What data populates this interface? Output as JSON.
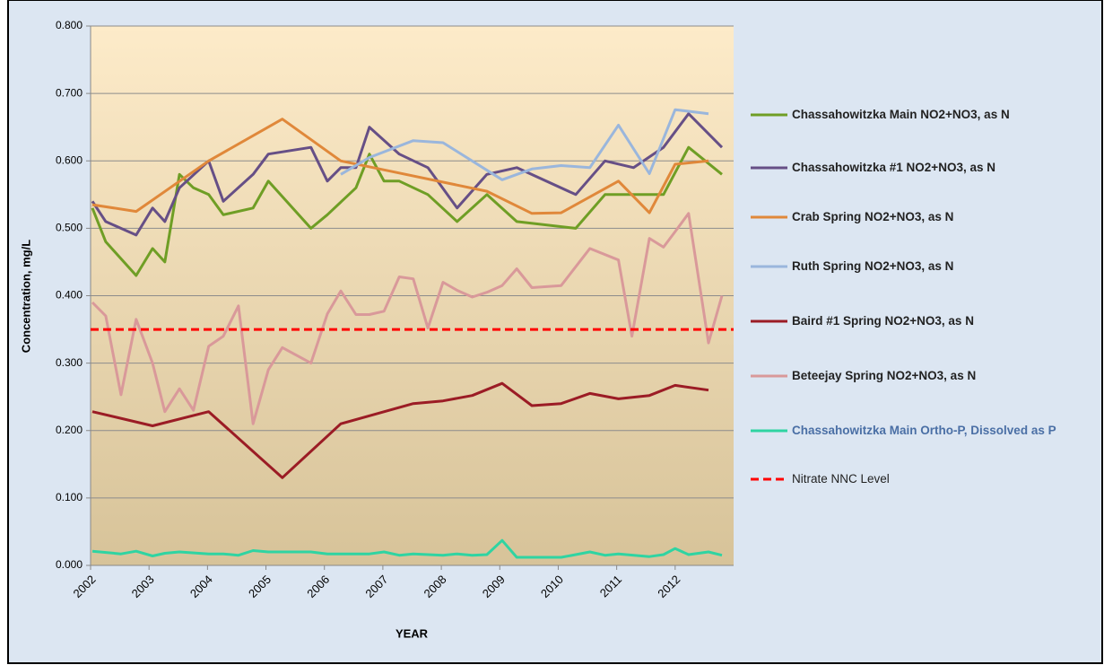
{
  "chart_data": {
    "type": "line",
    "y_label": "Concentration, mg/L",
    "x_label": "YEAR",
    "xlim": [
      2002,
      2013
    ],
    "xticks": [
      2002,
      2003,
      2004,
      2005,
      2006,
      2007,
      2008,
      2009,
      2010,
      2011,
      2012
    ],
    "ylim": [
      0,
      0.8
    ],
    "yticks": [
      {
        "value": 0,
        "label": "0.000"
      },
      {
        "value": 0.1,
        "label": "0.100"
      },
      {
        "value": 0.2,
        "label": "0.200"
      },
      {
        "value": 0.3,
        "label": "0.300"
      },
      {
        "value": 0.4,
        "label": "0.400"
      },
      {
        "value": 0.5,
        "label": "0.500"
      },
      {
        "value": 0.6,
        "label": "0.600"
      },
      {
        "value": 0.7,
        "label": "0.700"
      },
      {
        "value": 0.8,
        "label": "0.800"
      }
    ],
    "grid": true,
    "legend": "right",
    "series": [
      {
        "name": "Chassahowitzka Main NO2+NO3, as N",
        "color": "#6f9e25",
        "x": [
          2002.03,
          2002.26,
          2002.78,
          2003.06,
          2003.27,
          2003.52,
          2003.76,
          2004.02,
          2004.27,
          2004.78,
          2005.04,
          2005.77,
          2006.05,
          2006.54,
          2006.77,
          2007.02,
          2007.28,
          2007.77,
          2008.27,
          2008.78,
          2009.29,
          2010.3,
          2010.8,
          2011.8,
          2012.23,
          2012.8
        ],
        "values": [
          0.53,
          0.48,
          0.43,
          0.47,
          0.45,
          0.58,
          0.56,
          0.55,
          0.52,
          0.53,
          0.57,
          0.5,
          0.52,
          0.56,
          0.61,
          0.57,
          0.57,
          0.55,
          0.51,
          0.55,
          0.51,
          0.5,
          0.55,
          0.55,
          0.62,
          0.58
        ]
      },
      {
        "name": "Chassahowitzka #1 NO2+NO3, as N",
        "color": "#664f86",
        "x": [
          2002.03,
          2002.26,
          2002.78,
          2003.06,
          2003.27,
          2003.52,
          2004.02,
          2004.27,
          2004.78,
          2005.04,
          2005.77,
          2006.05,
          2006.28,
          2006.54,
          2006.77,
          2007.28,
          2007.77,
          2008.27,
          2008.78,
          2009.29,
          2010.3,
          2010.8,
          2011.29,
          2011.8,
          2012.23,
          2012.8
        ],
        "values": [
          0.54,
          0.51,
          0.49,
          0.53,
          0.51,
          0.56,
          0.6,
          0.54,
          0.58,
          0.61,
          0.62,
          0.57,
          0.59,
          0.59,
          0.65,
          0.61,
          0.59,
          0.53,
          0.58,
          0.59,
          0.55,
          0.6,
          0.59,
          0.62,
          0.67,
          0.62
        ]
      },
      {
        "name": "Crab Spring NO2+NO3, as N",
        "color": "#e0883a",
        "x": [
          2002.03,
          2002.78,
          2004.02,
          2005.28,
          2006.28,
          2007.28,
          2008.78,
          2009.55,
          2010.05,
          2011.03,
          2011.56,
          2012.0,
          2012.57
        ],
        "values": [
          0.535,
          0.525,
          0.6,
          0.662,
          0.6,
          0.582,
          0.555,
          0.522,
          0.523,
          0.57,
          0.523,
          0.595,
          0.6
        ]
      },
      {
        "name": "Ruth Spring NO2+NO3, as N",
        "color": "#9ab6dc",
        "x": [
          2006.28,
          2006.77,
          2007.52,
          2008.03,
          2009.04,
          2009.55,
          2010.05,
          2010.54,
          2011.03,
          2011.56,
          2012.0,
          2012.57
        ],
        "values": [
          0.58,
          0.605,
          0.63,
          0.627,
          0.572,
          0.588,
          0.593,
          0.59,
          0.653,
          0.581,
          0.676,
          0.67
        ]
      },
      {
        "name": "Baird #1 Spring NO2+NO3, as N",
        "color": "#9b1c25",
        "x": [
          2002.03,
          2003.06,
          2004.02,
          2005.28,
          2006.28,
          2007.52,
          2008.03,
          2008.53,
          2009.04,
          2009.55,
          2010.05,
          2010.54,
          2011.03,
          2011.56,
          2012.0,
          2012.57
        ],
        "values": [
          0.228,
          0.207,
          0.228,
          0.13,
          0.21,
          0.24,
          0.244,
          0.252,
          0.27,
          0.237,
          0.24,
          0.255,
          0.247,
          0.252,
          0.267,
          0.26
        ]
      },
      {
        "name": "Beteejay Spring NO2+NO3, as N",
        "color": "#d9999a",
        "x": [
          2002.03,
          2002.26,
          2002.52,
          2002.78,
          2003.06,
          2003.27,
          2003.52,
          2003.76,
          2004.02,
          2004.27,
          2004.53,
          2004.78,
          2005.04,
          2005.28,
          2005.77,
          2006.05,
          2006.28,
          2006.54,
          2006.77,
          2007.02,
          2007.28,
          2007.52,
          2007.77,
          2008.03,
          2008.27,
          2008.53,
          2008.78,
          2009.04,
          2009.29,
          2009.55,
          2010.05,
          2010.54,
          2011.03,
          2011.26,
          2011.56,
          2011.8,
          2012.0,
          2012.23,
          2012.57,
          2012.8
        ],
        "values": [
          0.39,
          0.37,
          0.253,
          0.365,
          0.3,
          0.228,
          0.262,
          0.23,
          0.325,
          0.34,
          0.385,
          0.21,
          0.29,
          0.323,
          0.3,
          0.373,
          0.407,
          0.372,
          0.372,
          0.377,
          0.428,
          0.425,
          0.352,
          0.42,
          0.408,
          0.398,
          0.405,
          0.415,
          0.44,
          0.412,
          0.415,
          0.47,
          0.453,
          0.34,
          0.485,
          0.472,
          0.495,
          0.522,
          0.33,
          0.4
        ]
      },
      {
        "name": "Chassahowitzka Main Ortho-P, Dissolved as P",
        "color": "#2fd4a2",
        "x": [
          2002.03,
          2002.52,
          2002.78,
          2003.06,
          2003.27,
          2003.52,
          2004.02,
          2004.27,
          2004.53,
          2004.78,
          2005.04,
          2005.77,
          2006.05,
          2006.77,
          2007.02,
          2007.28,
          2007.52,
          2008.03,
          2008.27,
          2008.53,
          2008.78,
          2009.04,
          2009.29,
          2009.55,
          2010.05,
          2010.3,
          2010.54,
          2010.8,
          2011.03,
          2011.56,
          2011.8,
          2012.0,
          2012.23,
          2012.57,
          2012.8
        ],
        "values": [
          0.021,
          0.017,
          0.021,
          0.014,
          0.018,
          0.02,
          0.017,
          0.017,
          0.015,
          0.022,
          0.02,
          0.02,
          0.017,
          0.017,
          0.02,
          0.015,
          0.017,
          0.015,
          0.017,
          0.015,
          0.016,
          0.037,
          0.012,
          0.012,
          0.012,
          0.016,
          0.02,
          0.015,
          0.017,
          0.013,
          0.016,
          0.025,
          0.016,
          0.02,
          0.015
        ]
      }
    ],
    "reference_line": {
      "name": "Nitrate NNC Level",
      "value": 0.35,
      "color": "#ff0000"
    }
  }
}
